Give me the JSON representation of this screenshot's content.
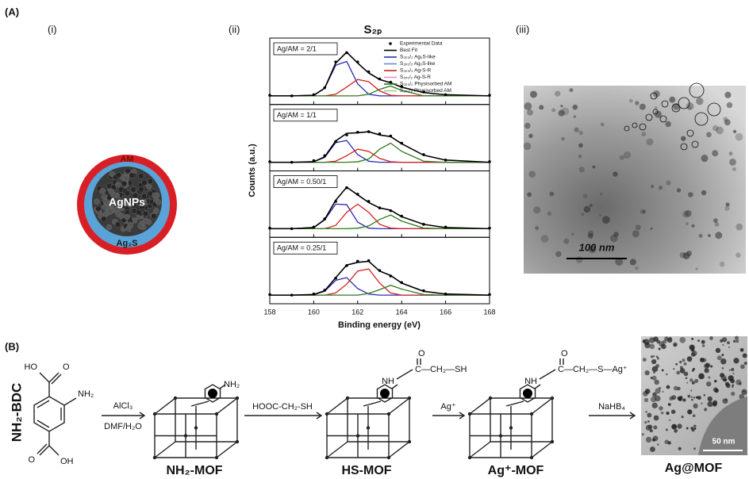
{
  "panel_labels": {
    "A": "(A)",
    "i": "(i)",
    "ii": "(ii)",
    "iii": "(iii)",
    "B": "(B)"
  },
  "schematic": {
    "shell": "AM",
    "core": "AgNPs",
    "interlayer": "Ag₂S"
  },
  "chart_data": {
    "type": "line",
    "title": "S₂ₚ",
    "x_label": "Binding energy (eV)",
    "y_label": "Counts (a.u.)",
    "xlim": [
      158,
      168
    ],
    "xticks": [
      158,
      160,
      162,
      164,
      166,
      168
    ],
    "ylim": [
      -10,
      100
    ],
    "x": [
      158,
      159,
      160,
      160.5,
      161,
      161.5,
      162,
      162.5,
      163,
      163.5,
      164,
      165,
      166,
      168
    ],
    "legend": [
      {
        "name": "Experimental Data",
        "color": "#000000"
      },
      {
        "name": "Best Fit",
        "color": "#000000"
      },
      {
        "name": "S₂ₚ₃/₂ Ag₂S-like",
        "color": "#2b2bb5"
      },
      {
        "name": "S₂ₚ₁/₂ Ag₂S-like",
        "color": "#6b8cd6"
      },
      {
        "name": "S₂ₚ₃/₂ Ag-S-R",
        "color": "#d42020"
      },
      {
        "name": "S₂ₚ₁/₂ Ag-S-R",
        "color": "#e88ee0"
      },
      {
        "name": "S₂ₚ₃/₂ Physisorbed AM",
        "color": "#2f7a1e"
      },
      {
        "name": "S₂ₚ₁/₂ Physisorbed AM",
        "color": "#9ad07a"
      }
    ],
    "subplots": [
      {
        "label": "Ag/AM = 2/1",
        "experimental": [
          1,
          0,
          2,
          15,
          62,
          79,
          62,
          44,
          31,
          25,
          17,
          7,
          2,
          1
        ],
        "best_fit": [
          0,
          0,
          1,
          14,
          60,
          80,
          60,
          42,
          30,
          24,
          16,
          6,
          2,
          0
        ],
        "ag2s": [
          0,
          0,
          1,
          14,
          56,
          63,
          22,
          3,
          0,
          0,
          0,
          0,
          0,
          0
        ],
        "agsr": [
          0,
          0,
          0,
          0,
          3,
          16,
          30,
          26,
          9,
          1,
          0,
          0,
          0,
          0
        ],
        "physisorbed": [
          0,
          0,
          0,
          0,
          0,
          0,
          0,
          3,
          12,
          18,
          10,
          0,
          0,
          0
        ]
      },
      {
        "label": "Ag/AM = 1/1",
        "experimental": [
          1,
          0,
          3,
          12,
          38,
          50,
          55,
          56,
          52,
          48,
          35,
          14,
          4,
          1
        ],
        "best_fit": [
          0,
          0,
          1,
          10,
          39,
          53,
          54,
          56,
          50,
          47,
          34,
          13,
          4,
          0
        ],
        "ag2s": [
          0,
          0,
          1,
          9,
          36,
          40,
          14,
          2,
          0,
          0,
          0,
          0,
          0,
          0
        ],
        "agsr": [
          0,
          0,
          0,
          0,
          2,
          12,
          24,
          20,
          7,
          1,
          0,
          0,
          0,
          0
        ],
        "physisorbed": [
          0,
          0,
          0,
          0,
          0,
          0,
          1,
          6,
          24,
          35,
          20,
          2,
          0,
          0
        ]
      },
      {
        "label": "Ag/AM = 0.50/1",
        "experimental": [
          1,
          0,
          3,
          18,
          50,
          75,
          63,
          50,
          38,
          33,
          23,
          8,
          3,
          1
        ],
        "best_fit": [
          0,
          0,
          2,
          17,
          52,
          76,
          62,
          48,
          38,
          34,
          22,
          8,
          2,
          0
        ],
        "ag2s": [
          0,
          0,
          2,
          16,
          45,
          44,
          12,
          1,
          0,
          0,
          0,
          0,
          0,
          0
        ],
        "agsr": [
          0,
          0,
          0,
          0,
          6,
          30,
          45,
          30,
          8,
          1,
          0,
          0,
          0,
          0
        ],
        "physisorbed": [
          0,
          0,
          0,
          0,
          0,
          0,
          1,
          5,
          17,
          25,
          14,
          1,
          0,
          0
        ]
      },
      {
        "label": "Ag/AM = 0.25/1",
        "experimental": [
          1,
          0,
          2,
          9,
          31,
          54,
          62,
          63,
          45,
          35,
          23,
          8,
          2,
          1
        ],
        "best_fit": [
          0,
          0,
          1,
          8,
          32,
          55,
          60,
          62,
          44,
          36,
          22,
          7,
          2,
          0
        ],
        "ag2s": [
          0,
          0,
          1,
          7,
          27,
          32,
          12,
          2,
          0,
          0,
          0,
          0,
          0,
          0
        ],
        "agsr": [
          0,
          0,
          0,
          0,
          4,
          20,
          44,
          48,
          22,
          4,
          0,
          0,
          0,
          0
        ],
        "physisorbed": [
          0,
          0,
          0,
          0,
          0,
          0,
          0,
          3,
          10,
          18,
          11,
          1,
          0,
          0
        ]
      }
    ]
  },
  "tem": {
    "scale_bar": "100 nm"
  },
  "scheme": {
    "linker": "NH₂-BDC",
    "linker_groups": [
      "HO",
      "O",
      "NH₂",
      "O",
      "OH"
    ],
    "steps": [
      {
        "reagent": "AlCl₃",
        "conditions": "DMF/H₂O"
      },
      {
        "reagent": "HOOC-CH₂-SH"
      },
      {
        "reagent": "Ag⁺"
      },
      {
        "reagent": "NaHB₄"
      }
    ],
    "products": [
      {
        "name": "NH₂-MOF",
        "groups": [
          "NH₂"
        ]
      },
      {
        "name": "HS-MOF",
        "groups": [
          "NH",
          "O",
          "C—CH₂—SH"
        ]
      },
      {
        "name": "Ag⁺-MOF",
        "groups": [
          "NH",
          "O",
          "C—CH₂—S—Ag⁺"
        ]
      },
      {
        "name": "Ag@MOF"
      }
    ],
    "tem_scale_bar": "50 nm"
  }
}
